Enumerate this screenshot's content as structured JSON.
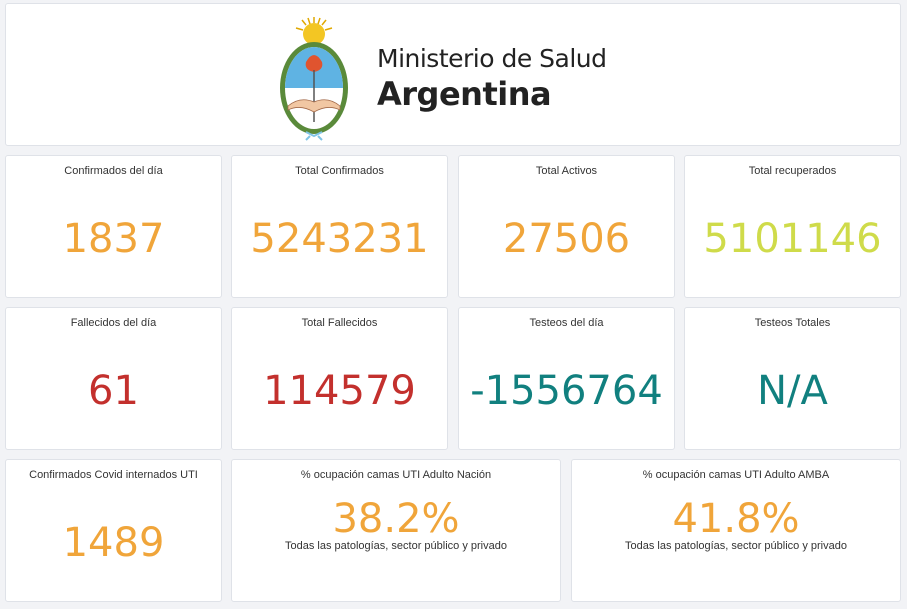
{
  "header": {
    "line1": "Ministerio de Salud",
    "line2": "Argentina",
    "logo": "escudo-nacional-argentino"
  },
  "colors": {
    "orange": "#f0a53a",
    "green": "#cfdb4a",
    "red": "#c3302d",
    "teal": "#11807f"
  },
  "cards": [
    {
      "title": "Confirmados del día",
      "value": "1837"
    },
    {
      "title": "Total Confirmados",
      "value": "5243231"
    },
    {
      "title": "Total Activos",
      "value": "27506"
    },
    {
      "title": "Total recuperados",
      "value": "5101146"
    },
    {
      "title": "Fallecidos del día",
      "value": "61"
    },
    {
      "title": "Total Fallecidos",
      "value": "114579"
    },
    {
      "title": "Testeos del día",
      "value": "-1556764"
    },
    {
      "title": "Testeos Totales",
      "value": "N/A"
    },
    {
      "title": "Confirmados Covid internados UTI",
      "value": "1489"
    },
    {
      "title": "% ocupación camas UTI Adulto Nación",
      "value": "38.2%",
      "subtitle": "Todas las patologías, sector público y privado"
    },
    {
      "title": "% ocupación camas UTI Adulto AMBA",
      "value": "41.8%",
      "subtitle": "Todas las patologías, sector público y privado"
    }
  ]
}
